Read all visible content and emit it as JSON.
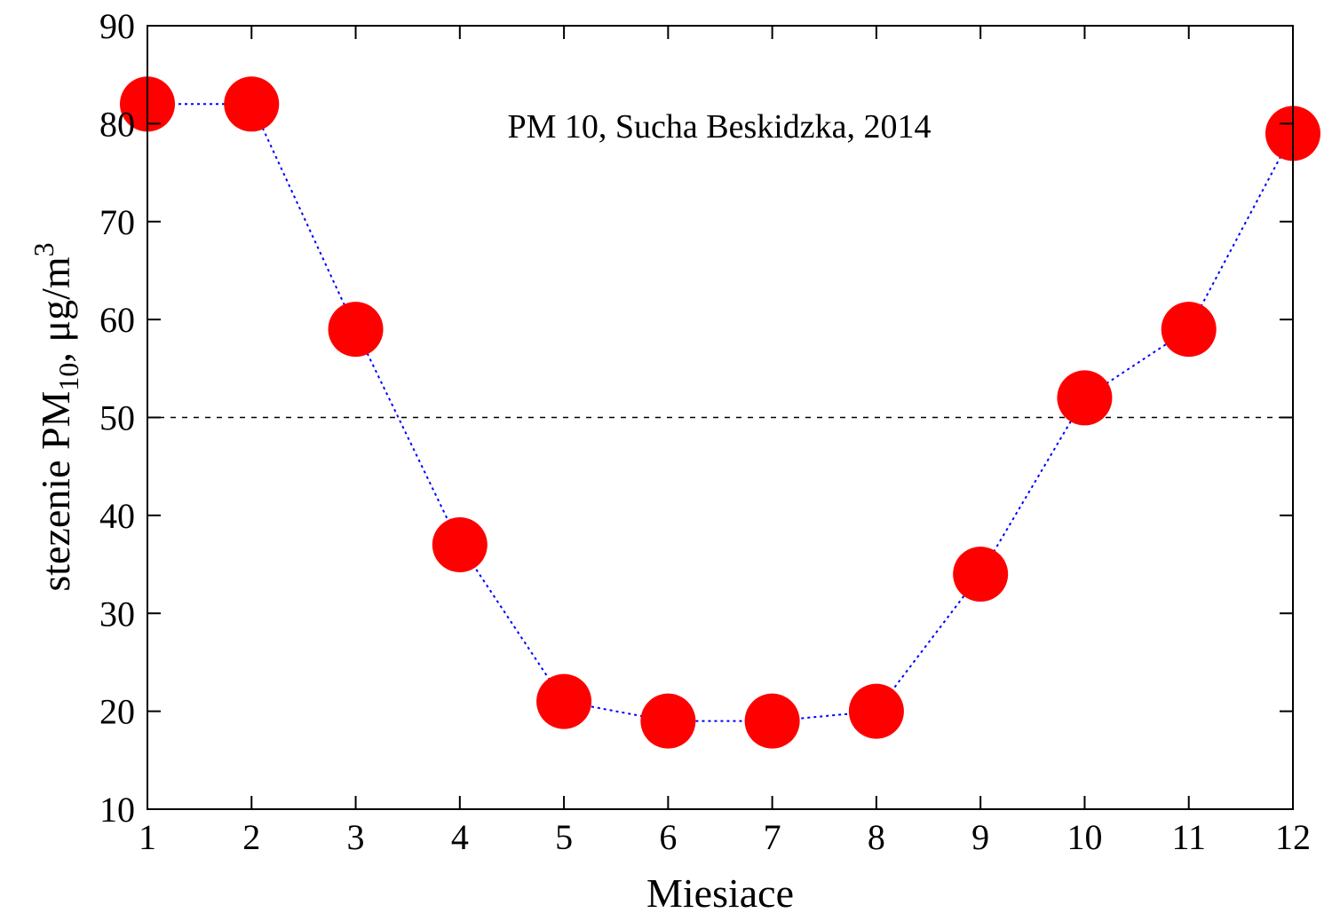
{
  "chart_data": {
    "type": "scatter",
    "title": "PM 10, Sucha Beskidzka, 2014",
    "xlabel": "Miesiace",
    "ylabel": {
      "prefix": "stezenie PM",
      "sub": "10",
      "middle": ", μg/m",
      "sup": "3"
    },
    "xlim": [
      1,
      12
    ],
    "ylim": [
      10,
      90
    ],
    "x_ticks": [
      1,
      2,
      3,
      4,
      5,
      6,
      7,
      8,
      9,
      10,
      11,
      12
    ],
    "y_ticks": [
      10,
      20,
      30,
      40,
      50,
      60,
      70,
      80,
      90
    ],
    "series": [
      {
        "x": [
          1,
          2,
          3,
          4,
          5,
          6,
          7,
          8,
          9,
          10,
          11,
          12
        ],
        "y": [
          82,
          82,
          59,
          37,
          21,
          19,
          19,
          20,
          34,
          52,
          59,
          79
        ],
        "marker_color": "#ff0000",
        "line_color": "#0000ff",
        "line_style": "dotted"
      }
    ],
    "reference_line": {
      "y": 50,
      "color": "#000000",
      "style": "dashed"
    },
    "grid": false,
    "legend": "none"
  }
}
